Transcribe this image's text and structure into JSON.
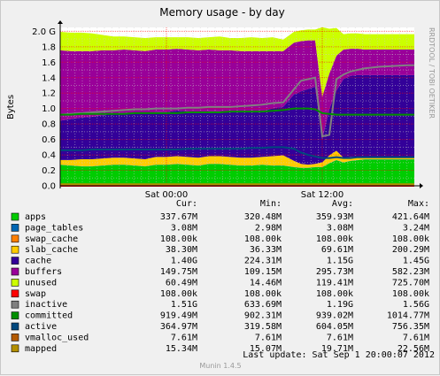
{
  "chart_data": {
    "type": "area",
    "title": "Memory usage - by day",
    "ylabel": "Bytes",
    "ylim": [
      0,
      2.05
    ],
    "y_ticks": [
      "0.0",
      "0.2",
      "0.4",
      "0.6",
      "0.8",
      "1.0",
      "1.2",
      "1.4",
      "1.6",
      "1.8",
      "2.0 G"
    ],
    "x_ticks": [
      {
        "label": "Sat 00:00",
        "t": 0.3
      },
      {
        "label": "Sat 12:00",
        "t": 0.74
      }
    ],
    "grid": true,
    "time_samples": [
      0,
      0.03,
      0.06,
      0.09,
      0.12,
      0.15,
      0.18,
      0.21,
      0.24,
      0.27,
      0.3,
      0.33,
      0.36,
      0.39,
      0.42,
      0.45,
      0.48,
      0.51,
      0.54,
      0.57,
      0.6,
      0.63,
      0.66,
      0.68,
      0.7,
      0.72,
      0.74,
      0.76,
      0.78,
      0.8,
      0.82,
      0.84,
      0.86,
      0.9,
      0.94,
      0.98,
      1.0
    ],
    "series": [
      {
        "name": "apps",
        "color": "#00cc00",
        "values": [
          0.27,
          0.26,
          0.25,
          0.25,
          0.26,
          0.27,
          0.27,
          0.26,
          0.25,
          0.27,
          0.27,
          0.28,
          0.27,
          0.26,
          0.28,
          0.28,
          0.27,
          0.26,
          0.26,
          0.27,
          0.26,
          0.26,
          0.24,
          0.23,
          0.23,
          0.24,
          0.24,
          0.29,
          0.33,
          0.3,
          0.32,
          0.33,
          0.34,
          0.34,
          0.34,
          0.34,
          0.34
        ]
      },
      {
        "name": "page_tables",
        "color": "#0066b3",
        "values": [
          0.003,
          0.003,
          0.003,
          0.003,
          0.003,
          0.003,
          0.003,
          0.003,
          0.003,
          0.003,
          0.003,
          0.003,
          0.003,
          0.003,
          0.003,
          0.003,
          0.003,
          0.003,
          0.003,
          0.003,
          0.003,
          0.003,
          0.003,
          0.003,
          0.003,
          0.003,
          0.003,
          0.003,
          0.003,
          0.003,
          0.003,
          0.003,
          0.003,
          0.003,
          0.003,
          0.003,
          0.003
        ]
      },
      {
        "name": "swap_cache",
        "color": "#ff8000",
        "values": [
          0.0001,
          0.0001,
          0.0001,
          0.0001,
          0.0001,
          0.0001,
          0.0001,
          0.0001,
          0.0001,
          0.0001,
          0.0001,
          0.0001,
          0.0001,
          0.0001,
          0.0001,
          0.0001,
          0.0001,
          0.0001,
          0.0001,
          0.0001,
          0.0001,
          0.0001,
          0.0001,
          0.0001,
          0.0001,
          0.0001,
          0.0001,
          0.0001,
          0.0001,
          0.0001,
          0.0001,
          0.0001,
          0.0001,
          0.0001,
          0.0001,
          0.0001,
          0.0001
        ]
      },
      {
        "name": "slab_cache",
        "color": "#ffcc00",
        "values": [
          0.06,
          0.07,
          0.09,
          0.09,
          0.09,
          0.09,
          0.09,
          0.09,
          0.09,
          0.1,
          0.1,
          0.1,
          0.1,
          0.1,
          0.1,
          0.1,
          0.1,
          0.1,
          0.1,
          0.1,
          0.12,
          0.13,
          0.08,
          0.05,
          0.04,
          0.04,
          0.06,
          0.1,
          0.12,
          0.06,
          0.05,
          0.04,
          0.03,
          0.03,
          0.03,
          0.03,
          0.03
        ]
      },
      {
        "name": "cache",
        "color": "#330099",
        "values": [
          0.51,
          0.53,
          0.54,
          0.55,
          0.56,
          0.57,
          0.58,
          0.58,
          0.59,
          0.58,
          0.58,
          0.59,
          0.59,
          0.59,
          0.58,
          0.58,
          0.58,
          0.59,
          0.6,
          0.59,
          0.62,
          0.63,
          0.86,
          0.94,
          0.98,
          1.0,
          0.3,
          0.6,
          0.78,
          1.02,
          1.05,
          1.06,
          1.06,
          1.06,
          1.06,
          1.06,
          1.06
        ]
      },
      {
        "name": "buffers",
        "color": "#990099",
        "values": [
          0.91,
          0.88,
          0.86,
          0.85,
          0.84,
          0.82,
          0.82,
          0.82,
          0.81,
          0.81,
          0.81,
          0.8,
          0.8,
          0.8,
          0.8,
          0.79,
          0.8,
          0.79,
          0.78,
          0.78,
          0.74,
          0.72,
          0.67,
          0.65,
          0.63,
          0.6,
          0.55,
          0.46,
          0.45,
          0.38,
          0.35,
          0.34,
          0.33,
          0.33,
          0.33,
          0.33,
          0.33
        ]
      },
      {
        "name": "unused",
        "color": "#ccff00",
        "values": [
          0.24,
          0.24,
          0.24,
          0.23,
          0.2,
          0.18,
          0.17,
          0.17,
          0.17,
          0.16,
          0.16,
          0.15,
          0.16,
          0.16,
          0.16,
          0.18,
          0.16,
          0.17,
          0.18,
          0.17,
          0.18,
          0.15,
          0.14,
          0.14,
          0.14,
          0.14,
          0.9,
          0.58,
          0.36,
          0.2,
          0.2,
          0.2,
          0.2,
          0.2,
          0.2,
          0.2,
          0.2
        ]
      }
    ],
    "lines": [
      {
        "name": "swap",
        "color": "#ff0000",
        "values": [
          0.0001,
          0.0001,
          0.0001,
          0.0001,
          0.0001,
          0.0001,
          0.0001,
          0.0001,
          0.0001,
          0.0001,
          0.0001,
          0.0001,
          0.0001,
          0.0001,
          0.0001,
          0.0001,
          0.0001,
          0.0001,
          0.0001,
          0.0001,
          0.0001,
          0.0001,
          0.0001,
          0.0001,
          0.0001,
          0.0001,
          0.0001,
          0.0001,
          0.0001,
          0.0001,
          0.0001,
          0.0001,
          0.0001,
          0.0001,
          0.0001,
          0.0001,
          0.0001
        ]
      },
      {
        "name": "inactive",
        "color": "#808080",
        "values": [
          0.92,
          0.93,
          0.94,
          0.95,
          0.96,
          0.97,
          0.98,
          0.99,
          0.99,
          1.0,
          1.0,
          1.0,
          1.01,
          1.01,
          1.02,
          1.02,
          1.02,
          1.03,
          1.04,
          1.05,
          1.07,
          1.08,
          1.25,
          1.36,
          1.38,
          1.4,
          0.64,
          0.66,
          1.38,
          1.44,
          1.48,
          1.5,
          1.52,
          1.54,
          1.55,
          1.56,
          1.56
        ]
      },
      {
        "name": "committed",
        "color": "#008f00",
        "values": [
          0.92,
          0.92,
          0.93,
          0.93,
          0.93,
          0.93,
          0.93,
          0.94,
          0.94,
          0.94,
          0.94,
          0.94,
          0.95,
          0.95,
          0.95,
          0.95,
          0.96,
          0.96,
          0.96,
          0.96,
          0.97,
          0.98,
          1.0,
          1.0,
          1.0,
          0.99,
          0.94,
          0.93,
          0.92,
          0.92,
          0.92,
          0.92,
          0.92,
          0.92,
          0.92,
          0.92,
          0.92
        ]
      },
      {
        "name": "active",
        "color": "#00487d",
        "values": [
          0.46,
          0.46,
          0.46,
          0.47,
          0.47,
          0.47,
          0.47,
          0.47,
          0.47,
          0.47,
          0.47,
          0.47,
          0.48,
          0.48,
          0.48,
          0.48,
          0.48,
          0.48,
          0.49,
          0.49,
          0.5,
          0.5,
          0.48,
          0.43,
          0.4,
          0.38,
          0.36,
          0.36,
          0.37,
          0.36,
          0.36,
          0.37,
          0.37,
          0.37,
          0.37,
          0.37,
          0.37
        ]
      },
      {
        "name": "vmalloc_used",
        "color": "#b35a00",
        "values": [
          0.0076,
          0.0076,
          0.0076,
          0.0076,
          0.0076,
          0.0076,
          0.0076,
          0.0076,
          0.0076,
          0.0076,
          0.0076,
          0.0076,
          0.0076,
          0.0076,
          0.0076,
          0.0076,
          0.0076,
          0.0076,
          0.0076,
          0.0076,
          0.0076,
          0.0076,
          0.0076,
          0.0076,
          0.0076,
          0.0076,
          0.0076,
          0.0076,
          0.0076,
          0.0076,
          0.0076,
          0.0076,
          0.0076,
          0.0076,
          0.0076,
          0.0076,
          0.0076
        ]
      },
      {
        "name": "mapped",
        "color": "#b38f00",
        "values": [
          0.02,
          0.02,
          0.02,
          0.02,
          0.02,
          0.02,
          0.02,
          0.02,
          0.02,
          0.02,
          0.02,
          0.02,
          0.02,
          0.02,
          0.02,
          0.02,
          0.02,
          0.02,
          0.02,
          0.02,
          0.02,
          0.02,
          0.02,
          0.02,
          0.02,
          0.02,
          0.02,
          0.02,
          0.02,
          0.02,
          0.02,
          0.02,
          0.02,
          0.02,
          0.02,
          0.02,
          0.02
        ]
      }
    ]
  },
  "legend": {
    "headers": [
      "Cur:",
      "Min:",
      "Avg:",
      "Max:"
    ],
    "rows": [
      {
        "name": "apps",
        "color": "#00cc00",
        "cur": "337.67M",
        "min": "320.48M",
        "avg": "359.93M",
        "max": "421.64M"
      },
      {
        "name": "page_tables",
        "color": "#0066b3",
        "cur": "3.08M",
        "min": "2.98M",
        "avg": "3.08M",
        "max": "3.24M"
      },
      {
        "name": "swap_cache",
        "color": "#ff8000",
        "cur": "108.00k",
        "min": "108.00k",
        "avg": "108.00k",
        "max": "108.00k"
      },
      {
        "name": "slab_cache",
        "color": "#ffcc00",
        "cur": "38.30M",
        "min": "36.33M",
        "avg": "69.61M",
        "max": "200.29M"
      },
      {
        "name": "cache",
        "color": "#330099",
        "cur": "1.40G",
        "min": "224.31M",
        "avg": "1.15G",
        "max": "1.45G"
      },
      {
        "name": "buffers",
        "color": "#990099",
        "cur": "149.75M",
        "min": "109.15M",
        "avg": "295.73M",
        "max": "582.23M"
      },
      {
        "name": "unused",
        "color": "#ccff00",
        "cur": "60.49M",
        "min": "14.46M",
        "avg": "119.41M",
        "max": "725.70M"
      },
      {
        "name": "swap",
        "color": "#ff0000",
        "cur": "108.00k",
        "min": "108.00k",
        "avg": "108.00k",
        "max": "108.00k"
      },
      {
        "name": "inactive",
        "color": "#808080",
        "cur": "1.51G",
        "min": "633.69M",
        "avg": "1.19G",
        "max": "1.56G"
      },
      {
        "name": "committed",
        "color": "#008f00",
        "cur": "919.49M",
        "min": "902.31M",
        "avg": "939.02M",
        "max": "1014.77M"
      },
      {
        "name": "active",
        "color": "#00487d",
        "cur": "364.97M",
        "min": "319.58M",
        "avg": "604.05M",
        "max": "756.35M"
      },
      {
        "name": "vmalloc_used",
        "color": "#b35a00",
        "cur": "7.61M",
        "min": "7.61M",
        "avg": "7.61M",
        "max": "7.61M"
      },
      {
        "name": "mapped",
        "color": "#b38f00",
        "cur": "15.34M",
        "min": "15.07M",
        "avg": "19.71M",
        "max": "22.56M"
      }
    ]
  },
  "footer": {
    "last_update": "Last update:  Sat Sep  1 20:00:07 2012",
    "version": "Munin 1.4.5"
  },
  "side_credit": "RRDTOOL / TOBI OETIKER",
  "colors": {
    "background": "#f0f0f0",
    "plot_bg": "#ffffff",
    "grid_major": "#ff0000",
    "grid_minor": "#cccccc"
  }
}
